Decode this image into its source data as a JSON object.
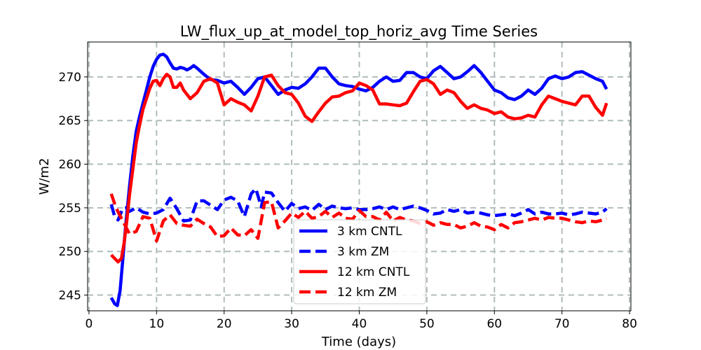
{
  "chart_data": {
    "type": "line",
    "title": "LW_flux_up_at_model_top_horiz_avg Time Series",
    "xlabel": "Time (days)",
    "ylabel": "W/m2",
    "xlim": [
      -0.2,
      80.2
    ],
    "ylim": [
      243.2,
      274.0
    ],
    "xticks": [
      0,
      10,
      20,
      30,
      40,
      50,
      60,
      70,
      80
    ],
    "yticks": [
      245,
      250,
      255,
      260,
      265,
      270
    ],
    "grid": true,
    "legend_position": "lower-center",
    "series": [
      {
        "name": "3 km CNTL",
        "color": "#0000ff",
        "style": "solid",
        "x": [
          3.3,
          3.8,
          4.2,
          4.6,
          5.0,
          5.5,
          6.0,
          6.5,
          7.0,
          7.5,
          8.0,
          8.5,
          9.0,
          9.5,
          10.0,
          10.5,
          11.0,
          11.5,
          12.0,
          12.5,
          13.0,
          13.5,
          14.0,
          14.5,
          15.0,
          15.5,
          16.0,
          17.0,
          18.0,
          19.0,
          20.0,
          21.0,
          22.0,
          23.0,
          24.0,
          25.0,
          26.0,
          27.0,
          28.0,
          29.0,
          30.0,
          31.0,
          32.0,
          33.0,
          34.0,
          35.0,
          36.0,
          37.0,
          38.0,
          39.0,
          40.0,
          41.0,
          42.0,
          43.0,
          44.0,
          45.0,
          46.0,
          47.0,
          48.0,
          49.0,
          50.0,
          51.0,
          52.0,
          53.0,
          54.0,
          55.0,
          56.0,
          57.0,
          58.0,
          59.0,
          60.0,
          61.0,
          62.0,
          63.0,
          64.0,
          65.0,
          66.0,
          67.0,
          68.0,
          69.0,
          70.0,
          71.0,
          72.0,
          73.0,
          74.0,
          75.0,
          76.0,
          76.6
        ],
        "y": [
          244.7,
          244.0,
          243.8,
          245.5,
          249.0,
          253.5,
          257.5,
          261.0,
          263.8,
          265.5,
          267.0,
          268.5,
          270.0,
          271.2,
          272.0,
          272.5,
          272.6,
          272.3,
          271.6,
          271.0,
          270.9,
          271.1,
          271.0,
          270.8,
          271.0,
          271.3,
          271.0,
          270.3,
          269.7,
          269.6,
          269.3,
          269.5,
          268.8,
          268.0,
          268.8,
          269.8,
          270.0,
          269.0,
          268.0,
          268.5,
          268.8,
          268.7,
          269.2,
          270.0,
          271.0,
          271.0,
          270.0,
          269.2,
          269.0,
          268.9,
          268.6,
          268.4,
          268.8,
          269.5,
          270.0,
          269.5,
          269.6,
          270.5,
          270.5,
          270.0,
          269.8,
          270.7,
          271.2,
          270.5,
          269.8,
          270.0,
          270.6,
          271.3,
          270.5,
          269.5,
          268.5,
          268.2,
          267.6,
          267.4,
          267.8,
          268.5,
          268.0,
          268.7,
          269.8,
          270.1,
          269.8,
          270.0,
          270.5,
          270.6,
          270.2,
          269.8,
          269.5,
          268.6
        ]
      },
      {
        "name": "3 km ZM",
        "color": "#0000ff",
        "style": "dashed",
        "x": [
          3.3,
          3.8,
          4.3,
          5.0,
          5.5,
          6.0,
          7.0,
          8.0,
          9.0,
          10.0,
          11.0,
          12.0,
          13.0,
          14.0,
          15.0,
          16.0,
          17.0,
          18.0,
          19.0,
          20.0,
          21.0,
          22.0,
          23.0,
          24.0,
          24.7,
          25.5,
          26.0,
          27.0,
          28.0,
          29.0,
          30.0,
          31.0,
          32.0,
          33.0,
          34.0,
          35.0,
          36.0,
          37.0,
          38.0,
          39.0,
          40.0,
          41.0,
          42.0,
          43.0,
          44.0,
          45.0,
          46.0,
          47.0,
          48.0,
          49.0,
          50.0,
          51.0,
          52.0,
          53.0,
          54.0,
          55.0,
          56.0,
          57.0,
          58.0,
          59.0,
          60.0,
          61.0,
          62.0,
          63.0,
          64.0,
          65.0,
          66.0,
          67.0,
          68.0,
          69.0,
          70.0,
          71.0,
          72.0,
          73.0,
          74.0,
          75.0,
          76.0,
          76.6
        ],
        "y": [
          255.4,
          254.0,
          253.6,
          254.9,
          255.0,
          254.6,
          255.0,
          254.5,
          254.3,
          254.4,
          254.8,
          256.1,
          254.9,
          253.5,
          253.6,
          255.8,
          255.8,
          255.3,
          254.8,
          255.9,
          256.2,
          255.8,
          254.0,
          256.6,
          257.2,
          255.1,
          256.8,
          256.7,
          255.6,
          254.6,
          255.5,
          254.9,
          255.1,
          254.7,
          255.4,
          254.8,
          255.2,
          255.0,
          254.9,
          255.0,
          254.8,
          254.8,
          254.9,
          255.1,
          254.8,
          255.1,
          254.8,
          255.0,
          255.2,
          255.0,
          254.7,
          254.3,
          254.4,
          254.8,
          254.6,
          254.8,
          254.4,
          254.5,
          254.4,
          254.2,
          254.1,
          254.2,
          254.3,
          254.1,
          254.4,
          254.8,
          254.3,
          254.5,
          254.3,
          254.3,
          254.4,
          254.2,
          254.3,
          254.5,
          254.4,
          254.3,
          254.5,
          254.9
        ]
      },
      {
        "name": "12 km CNTL",
        "color": "#ff0000",
        "style": "solid",
        "x": [
          3.3,
          3.8,
          4.3,
          4.8,
          5.2,
          5.6,
          6.0,
          6.5,
          7.0,
          7.5,
          8.0,
          8.5,
          9.0,
          9.5,
          10.0,
          10.5,
          11.0,
          11.5,
          12.0,
          12.5,
          13.0,
          13.5,
          14.0,
          15.0,
          16.0,
          17.0,
          18.0,
          19.0,
          20.0,
          21.0,
          22.0,
          23.0,
          24.0,
          25.0,
          26.0,
          27.0,
          28.0,
          29.0,
          30.0,
          31.0,
          32.0,
          33.0,
          34.0,
          35.0,
          36.0,
          37.0,
          38.0,
          39.0,
          40.0,
          41.0,
          42.0,
          43.0,
          44.0,
          45.0,
          46.0,
          47.0,
          48.0,
          49.0,
          50.0,
          51.0,
          52.0,
          53.0,
          54.0,
          55.0,
          56.0,
          57.0,
          58.0,
          59.0,
          60.0,
          61.0,
          62.0,
          63.0,
          64.0,
          65.0,
          66.0,
          67.0,
          68.0,
          69.0,
          70.0,
          71.0,
          72.0,
          73.0,
          74.0,
          75.0,
          76.0,
          76.6
        ],
        "y": [
          249.6,
          249.2,
          248.8,
          249.2,
          251.0,
          253.5,
          256.5,
          259.5,
          262.5,
          264.5,
          266.3,
          267.5,
          268.7,
          269.5,
          269.6,
          269.0,
          269.8,
          270.3,
          270.0,
          268.8,
          268.8,
          269.3,
          268.5,
          267.5,
          268.2,
          269.5,
          269.8,
          269.3,
          266.8,
          267.5,
          267.1,
          266.8,
          266.1,
          267.8,
          270.0,
          270.2,
          269.0,
          268.2,
          268.0,
          267.0,
          265.5,
          264.9,
          266.0,
          267.0,
          267.7,
          267.8,
          268.2,
          268.4,
          269.3,
          269.0,
          268.5,
          266.9,
          266.9,
          266.8,
          266.7,
          267.0,
          268.3,
          269.5,
          269.7,
          269.2,
          268.0,
          268.5,
          268.2,
          267.2,
          266.4,
          266.8,
          266.4,
          266.2,
          265.8,
          266.0,
          265.4,
          265.2,
          265.3,
          265.6,
          265.4,
          266.8,
          267.8,
          267.5,
          267.2,
          267.0,
          266.8,
          267.8,
          267.8,
          266.5,
          265.6,
          267.0
        ]
      },
      {
        "name": "12 km ZM",
        "color": "#ff0000",
        "style": "dashed",
        "x": [
          3.3,
          4.0,
          5.0,
          6.0,
          7.0,
          8.0,
          9.0,
          10.0,
          11.0,
          12.0,
          13.0,
          14.0,
          15.0,
          16.0,
          17.0,
          18.0,
          19.0,
          20.0,
          21.0,
          22.0,
          23.0,
          24.0,
          25.0,
          26.0,
          27.0,
          28.0,
          29.0,
          30.0,
          31.0,
          32.0,
          33.0,
          34.0,
          35.0,
          36.0,
          37.0,
          38.0,
          39.0,
          40.0,
          41.0,
          42.0,
          43.0,
          44.0,
          45.0,
          46.0,
          47.0,
          48.0,
          49.0,
          50.0,
          51.0,
          52.0,
          53.0,
          54.0,
          55.0,
          56.0,
          57.0,
          58.0,
          59.0,
          60.0,
          61.0,
          62.0,
          63.0,
          64.0,
          65.0,
          66.0,
          67.0,
          68.0,
          69.0,
          70.0,
          71.0,
          72.0,
          73.0,
          74.0,
          75.0,
          76.0,
          76.6
        ],
        "y": [
          256.6,
          255.0,
          253.5,
          252.0,
          252.3,
          254.0,
          253.8,
          251.2,
          253.5,
          254.2,
          253.2,
          253.0,
          252.9,
          253.7,
          253.2,
          252.8,
          251.7,
          251.8,
          252.7,
          251.9,
          251.8,
          252.5,
          251.5,
          255.6,
          255.7,
          252.7,
          253.5,
          254.4,
          253.9,
          254.6,
          253.8,
          254.0,
          254.6,
          253.9,
          254.4,
          253.8,
          253.7,
          254.7,
          254.0,
          254.0,
          253.6,
          254.5,
          253.5,
          253.9,
          253.6,
          253.5,
          253.2,
          253.4,
          253.0,
          253.3,
          253.1,
          253.1,
          252.7,
          252.9,
          253.3,
          252.9,
          252.8,
          252.5,
          253.1,
          252.7,
          253.3,
          253.4,
          253.6,
          253.8,
          253.6,
          253.9,
          253.8,
          253.8,
          253.6,
          253.4,
          253.3,
          253.5,
          253.4,
          253.6,
          253.8
        ]
      }
    ]
  }
}
